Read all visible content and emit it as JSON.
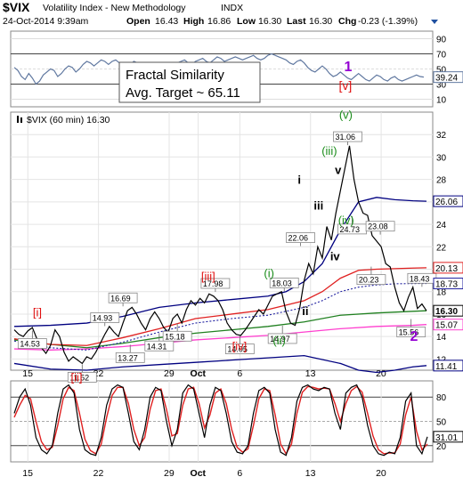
{
  "header": {
    "symbol": "$VIX",
    "name": "Volatility Index - New Methodology",
    "exchange": "INDX",
    "datetime": "24-Oct-2014 9:39am",
    "open_label": "Open",
    "open": "16.43",
    "high_label": "High",
    "high": "16.86",
    "low_label": "Low",
    "low": "16.30",
    "last_label": "Last",
    "last": "16.30",
    "chg_label": "Chg",
    "chg": "-0.23 (-1.39%)"
  },
  "annotation_box": {
    "line1": "Fractal Similarity",
    "line2": "Avg. Target ~ 65.11"
  },
  "colors": {
    "price": "#000000",
    "upper_band": "#000080",
    "lower_band": "#000080",
    "ma_red": "#e02020",
    "ma_green": "#208020",
    "ma_magenta": "#ff3fcf",
    "ma_dotted": "#2020a0",
    "wave_green": "#1a8c1a",
    "wave_red": "#e01010",
    "wave_purple": "#9400d3"
  },
  "chart_data": [
    {
      "type": "line",
      "panel": "rsi-top",
      "yticks": [
        90,
        70,
        50,
        30,
        10
      ],
      "ylim": [
        0,
        100
      ],
      "last_label": "39.24",
      "x": [
        0,
        4,
        8,
        12,
        16,
        20,
        24,
        28,
        32,
        36,
        40,
        44,
        48,
        52,
        56,
        60,
        64,
        68,
        72,
        76,
        80,
        84,
        88,
        92,
        96,
        100,
        104,
        108,
        112,
        116,
        120,
        124,
        128,
        132,
        136,
        140,
        144,
        148,
        152,
        156,
        160,
        164,
        168,
        172,
        176,
        180,
        184,
        188,
        192,
        196,
        200,
        204,
        208,
        212,
        216,
        220,
        224,
        228,
        232,
        236,
        240,
        244,
        248,
        252,
        256,
        260,
        264,
        268,
        272,
        276,
        280,
        284,
        288,
        292,
        296,
        300,
        304,
        308,
        312,
        316,
        320,
        324,
        328,
        332,
        336,
        340,
        344,
        348,
        352,
        356,
        360,
        364,
        368,
        372,
        376,
        380,
        384,
        388,
        392,
        396,
        400,
        404,
        408,
        412,
        416,
        420,
        424,
        428,
        432,
        436,
        440,
        444,
        448,
        452
      ],
      "values": [
        52,
        48,
        40,
        36,
        44,
        38,
        30,
        34,
        42,
        46,
        50,
        48,
        40,
        44,
        50,
        54,
        52,
        46,
        50,
        56,
        60,
        58,
        54,
        58,
        62,
        60,
        56,
        60,
        62,
        58,
        54,
        52,
        56,
        60,
        58,
        54,
        50,
        48,
        52,
        56,
        58,
        56,
        52,
        50,
        54,
        58,
        60,
        62,
        58,
        56,
        60,
        62,
        64,
        60,
        58,
        62,
        66,
        64,
        60,
        62,
        64,
        66,
        64,
        62,
        64,
        66,
        68,
        64,
        62,
        64,
        68,
        70,
        68,
        66,
        64,
        62,
        58,
        56,
        60,
        62,
        58,
        52,
        48,
        46,
        50,
        54,
        50,
        44,
        40,
        42,
        46,
        42,
        38,
        36,
        40,
        44,
        40,
        36,
        34,
        38,
        42,
        40,
        36,
        34,
        38,
        40,
        36,
        34,
        36,
        38,
        40,
        42,
        40,
        39.24
      ]
    },
    {
      "type": "line",
      "panel": "price",
      "title": "$VIX (60 min) 16.30",
      "xticks": [
        {
          "x": 15,
          "label": "15"
        },
        {
          "x": 93,
          "label": "22"
        },
        {
          "x": 171,
          "label": "29"
        },
        {
          "x": 203,
          "label": "Oct"
        },
        {
          "x": 249,
          "label": "6"
        },
        {
          "x": 327,
          "label": "13"
        },
        {
          "x": 405,
          "label": "20"
        }
      ],
      "yticks": [
        32,
        30,
        28,
        26,
        24,
        22,
        20,
        18,
        16,
        14,
        12
      ],
      "ylim": [
        11,
        34
      ],
      "price_labels": [
        {
          "x": 20,
          "y": 14.53,
          "label": "14.53"
        },
        {
          "x": 75,
          "y": 11.52,
          "label": "11.52"
        },
        {
          "x": 100,
          "y": 14.93,
          "label": "14.93"
        },
        {
          "x": 128,
          "y": 13.27,
          "label": "13.27"
        },
        {
          "x": 120,
          "y": 16.69,
          "label": "16.69"
        },
        {
          "x": 180,
          "y": 15.18,
          "label": "15.18"
        },
        {
          "x": 160,
          "y": 14.31,
          "label": "14.31"
        },
        {
          "x": 222,
          "y": 17.98,
          "label": "17.98"
        },
        {
          "x": 249,
          "y": 14.05,
          "label": "14.05"
        },
        {
          "x": 298,
          "y": 18.03,
          "label": "18.03"
        },
        {
          "x": 296,
          "y": 14.97,
          "label": "14.97"
        },
        {
          "x": 316,
          "y": 22.06,
          "label": "22.06"
        },
        {
          "x": 368,
          "y": 31.06,
          "label": "31.06"
        },
        {
          "x": 373,
          "y": 24.73,
          "label": "24.73"
        },
        {
          "x": 404,
          "y": 23.08,
          "label": "23.08"
        },
        {
          "x": 394,
          "y": 20.23,
          "label": "20.23"
        },
        {
          "x": 450,
          "y": 18.43,
          "label": "18.43"
        },
        {
          "x": 438,
          "y": 15.56,
          "label": "15.56"
        }
      ],
      "axis_labels": [
        {
          "y": 26.06,
          "label": "26.06",
          "color": "#000080"
        },
        {
          "y": 20.13,
          "label": "20.13",
          "color": "#e02020"
        },
        {
          "y": 18.73,
          "label": "18.73",
          "color": "#2020a0"
        },
        {
          "y": 16.3,
          "label": "16.30",
          "color": "#000000"
        },
        {
          "y": 15.07,
          "label": "15.07",
          "color": "#ff3fcf"
        },
        {
          "y": 11.41,
          "label": "11.41",
          "color": "#000080"
        }
      ],
      "wave_labels": [
        {
          "x": 30,
          "y": 15.8,
          "label": "[i]",
          "color": "#e01010"
        },
        {
          "x": 75,
          "y": 10.0,
          "label": "[ii]",
          "color": "#e01010"
        },
        {
          "x": 222,
          "y": 19.0,
          "label": "[iii]",
          "color": "#e01010"
        },
        {
          "x": 253,
          "y": 12.8,
          "label": "[iv]",
          "color": "#e01010"
        },
        {
          "x": 285,
          "y": 19.3,
          "label": "(i)",
          "color": "#1a8c1a"
        },
        {
          "x": 298,
          "y": 13.3,
          "label": "(ii)",
          "color": "#1a8c1a"
        },
        {
          "x": 355,
          "y": 30.2,
          "label": "(iii)",
          "color": "#1a8c1a"
        },
        {
          "x": 370,
          "y": 24.0,
          "label": "(iv)",
          "color": "#1a8c1a"
        },
        {
          "x": 368,
          "y": 33.4,
          "label": "(v)",
          "color": "#1a8c1a"
        },
        {
          "x": 316,
          "y": 27.6,
          "label": "i",
          "color": "#000000"
        },
        {
          "x": 324,
          "y": 15.9,
          "label": "ii",
          "color": "#000000"
        },
        {
          "x": 340,
          "y": 25.3,
          "label": "iii",
          "color": "#000000"
        },
        {
          "x": 355,
          "y": 20.8,
          "label": "iv",
          "color": "#000000"
        },
        {
          "x": 357,
          "y": 28.5,
          "label": "v",
          "color": "#000000"
        },
        {
          "x": 440,
          "y": 13.6,
          "label": "2",
          "color": "#9400d3"
        }
      ],
      "top_wave_labels": [
        {
          "x": 368,
          "label": "1",
          "color": "#9400d3"
        },
        {
          "x": 368,
          "label": "[v]",
          "color": "#e01010"
        }
      ],
      "series": [
        {
          "kind": "price",
          "x": [
            0,
            5,
            10,
            15,
            20,
            25,
            30,
            35,
            40,
            45,
            50,
            55,
            60,
            65,
            70,
            75,
            80,
            85,
            90,
            95,
            100,
            105,
            110,
            115,
            120,
            125,
            130,
            135,
            140,
            145,
            150,
            155,
            160,
            165,
            170,
            175,
            180,
            185,
            190,
            195,
            200,
            205,
            210,
            215,
            220,
            225,
            230,
            235,
            240,
            245,
            250,
            255,
            260,
            265,
            270,
            275,
            280,
            285,
            290,
            295,
            300,
            305,
            310,
            315,
            320,
            325,
            330,
            335,
            340,
            345,
            350,
            355,
            360,
            365,
            370,
            375,
            380,
            385,
            390,
            395,
            400,
            405,
            410,
            415,
            420,
            425,
            430,
            435,
            440,
            445,
            450,
            455
          ],
          "values": [
            14.6,
            14.2,
            14.0,
            14.5,
            14.8,
            13.8,
            13.0,
            12.5,
            13.2,
            14.6,
            14.0,
            12.6,
            11.8,
            12.2,
            11.9,
            11.6,
            12.2,
            12.0,
            12.6,
            13.4,
            14.2,
            14.9,
            14.4,
            14.0,
            15.2,
            16.3,
            16.6,
            16.0,
            15.2,
            14.6,
            15.6,
            16.2,
            15.6,
            14.8,
            14.4,
            15.6,
            16.0,
            15.2,
            16.4,
            17.2,
            16.8,
            17.4,
            17.0,
            17.8,
            17.6,
            17.2,
            16.4,
            15.2,
            14.6,
            14.2,
            14.1,
            14.6,
            15.2,
            15.8,
            16.4,
            16.0,
            16.8,
            17.6,
            17.8,
            18.0,
            16.2,
            15.2,
            15.0,
            16.5,
            19.0,
            20.5,
            19.6,
            22.0,
            21.0,
            23.8,
            22.6,
            25.0,
            27.0,
            29.0,
            31.0,
            28.0,
            26.0,
            25.0,
            24.8,
            23.0,
            22.5,
            22.0,
            20.5,
            20.2,
            18.4,
            17.0,
            16.3,
            17.5,
            18.4,
            16.5,
            16.9,
            16.3
          ]
        },
        {
          "kind": "upper_band",
          "x": [
            0,
            40,
            80,
            120,
            160,
            200,
            240,
            280,
            300,
            320,
            340,
            360,
            380,
            400,
            420,
            440,
            455
          ],
          "values": [
            14.9,
            15.0,
            15.2,
            15.8,
            16.6,
            17.0,
            17.3,
            17.6,
            18.0,
            18.9,
            20.5,
            23.5,
            26.0,
            26.4,
            26.2,
            26.1,
            26.06
          ]
        },
        {
          "kind": "lower_band",
          "x": [
            0,
            40,
            80,
            120,
            160,
            200,
            240,
            280,
            320,
            360,
            380,
            400,
            420,
            440,
            455
          ],
          "values": [
            11.6,
            11.1,
            11.0,
            11.3,
            11.5,
            11.7,
            11.9,
            12.1,
            12.3,
            11.6,
            11.0,
            10.8,
            11.0,
            11.3,
            11.41
          ]
        },
        {
          "kind": "ma_red",
          "x": [
            0,
            40,
            80,
            120,
            160,
            200,
            240,
            280,
            320,
            340,
            360,
            380,
            400,
            420,
            440,
            455
          ],
          "values": [
            13.8,
            13.3,
            13.2,
            13.9,
            14.7,
            15.6,
            16.0,
            16.4,
            17.2,
            18.0,
            19.2,
            19.9,
            20.0,
            20.05,
            20.1,
            20.13
          ]
        },
        {
          "kind": "ma_dotted",
          "x": [
            0,
            40,
            80,
            120,
            160,
            200,
            240,
            280,
            320,
            340,
            360,
            380,
            400,
            420,
            440,
            455
          ],
          "values": [
            13.6,
            13.0,
            12.8,
            13.5,
            14.4,
            15.2,
            15.6,
            15.9,
            16.6,
            17.2,
            18.0,
            18.4,
            18.6,
            18.7,
            18.72,
            18.73
          ]
        },
        {
          "kind": "ma_green",
          "x": [
            0,
            40,
            80,
            120,
            160,
            200,
            240,
            280,
            320,
            360,
            400,
            440,
            455
          ],
          "values": [
            13.7,
            13.3,
            13.0,
            13.4,
            13.9,
            14.3,
            14.6,
            14.9,
            15.3,
            15.9,
            16.1,
            16.25,
            16.3
          ]
        },
        {
          "kind": "ma_magenta",
          "x": [
            0,
            40,
            80,
            120,
            160,
            200,
            240,
            280,
            320,
            360,
            400,
            440,
            455
          ],
          "values": [
            12.9,
            12.8,
            12.9,
            13.1,
            13.4,
            13.7,
            13.9,
            14.1,
            14.4,
            14.7,
            14.9,
            15.0,
            15.07
          ]
        }
      ]
    },
    {
      "type": "line",
      "panel": "stoch-bottom",
      "yticks": [
        80,
        50,
        20
      ],
      "ylim": [
        0,
        100
      ],
      "last_label": "31.01",
      "xticks": [
        {
          "x": 15,
          "label": "15"
        },
        {
          "x": 93,
          "label": "22"
        },
        {
          "x": 171,
          "label": "29"
        },
        {
          "x": 203,
          "label": "Oct"
        },
        {
          "x": 249,
          "label": "6"
        },
        {
          "x": 327,
          "label": "13"
        },
        {
          "x": 405,
          "label": "20"
        }
      ],
      "x": [
        0,
        6,
        12,
        18,
        24,
        30,
        36,
        42,
        48,
        54,
        60,
        66,
        72,
        78,
        84,
        90,
        96,
        102,
        108,
        114,
        120,
        126,
        132,
        138,
        144,
        150,
        156,
        162,
        168,
        174,
        180,
        186,
        192,
        198,
        204,
        210,
        216,
        222,
        228,
        234,
        240,
        246,
        252,
        258,
        264,
        270,
        276,
        282,
        288,
        294,
        300,
        306,
        312,
        318,
        324,
        330,
        336,
        342,
        348,
        354,
        360,
        366,
        372,
        378,
        384,
        390,
        396,
        402,
        408,
        414,
        420,
        426,
        432,
        438,
        444,
        450,
        456
      ],
      "values": [
        60,
        80,
        90,
        70,
        30,
        15,
        10,
        20,
        60,
        90,
        95,
        85,
        40,
        15,
        10,
        8,
        30,
        70,
        90,
        95,
        92,
        60,
        25,
        15,
        40,
        80,
        92,
        88,
        50,
        20,
        40,
        85,
        95,
        90,
        60,
        30,
        70,
        92,
        88,
        60,
        25,
        12,
        10,
        20,
        60,
        88,
        92,
        85,
        40,
        12,
        8,
        30,
        75,
        92,
        95,
        90,
        88,
        92,
        90,
        60,
        40,
        85,
        92,
        95,
        80,
        45,
        20,
        10,
        8,
        12,
        10,
        30,
        75,
        85,
        20,
        10,
        31.01
      ],
      "signal": [
        55,
        70,
        82,
        78,
        50,
        25,
        15,
        18,
        45,
        78,
        92,
        88,
        60,
        28,
        14,
        10,
        22,
        55,
        82,
        92,
        92,
        72,
        40,
        20,
        30,
        65,
        88,
        90,
        65,
        32,
        35,
        70,
        90,
        92,
        72,
        42,
        58,
        85,
        90,
        72,
        40,
        18,
        12,
        16,
        45,
        78,
        90,
        88,
        58,
        22,
        10,
        22,
        60,
        86,
        93,
        92,
        90,
        91,
        90,
        72,
        50,
        72,
        88,
        93,
        86,
        60,
        32,
        15,
        10,
        11,
        11,
        22,
        58,
        80,
        38,
        15,
        22
      ]
    }
  ]
}
